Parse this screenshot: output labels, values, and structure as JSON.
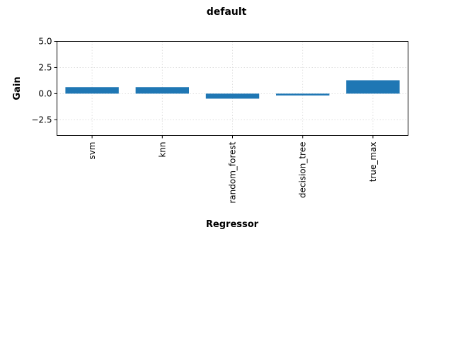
{
  "chart_data": {
    "type": "bar",
    "title": "default",
    "xlabel": "Regressor",
    "ylabel": "Gain",
    "categories": [
      "svm",
      "knn",
      "random_forest",
      "decision_tree",
      "true_max"
    ],
    "values": [
      0.62,
      0.62,
      -0.48,
      -0.18,
      1.28
    ],
    "ylim": [
      -4.0,
      5.0
    ],
    "yticks": [
      -2.5,
      0.0,
      2.5,
      5.0
    ],
    "ytick_labels": [
      "−2.5",
      "0.0",
      "2.5",
      "5.0"
    ],
    "grid": true,
    "legend": "none",
    "bar_color": "#1f77b4"
  }
}
